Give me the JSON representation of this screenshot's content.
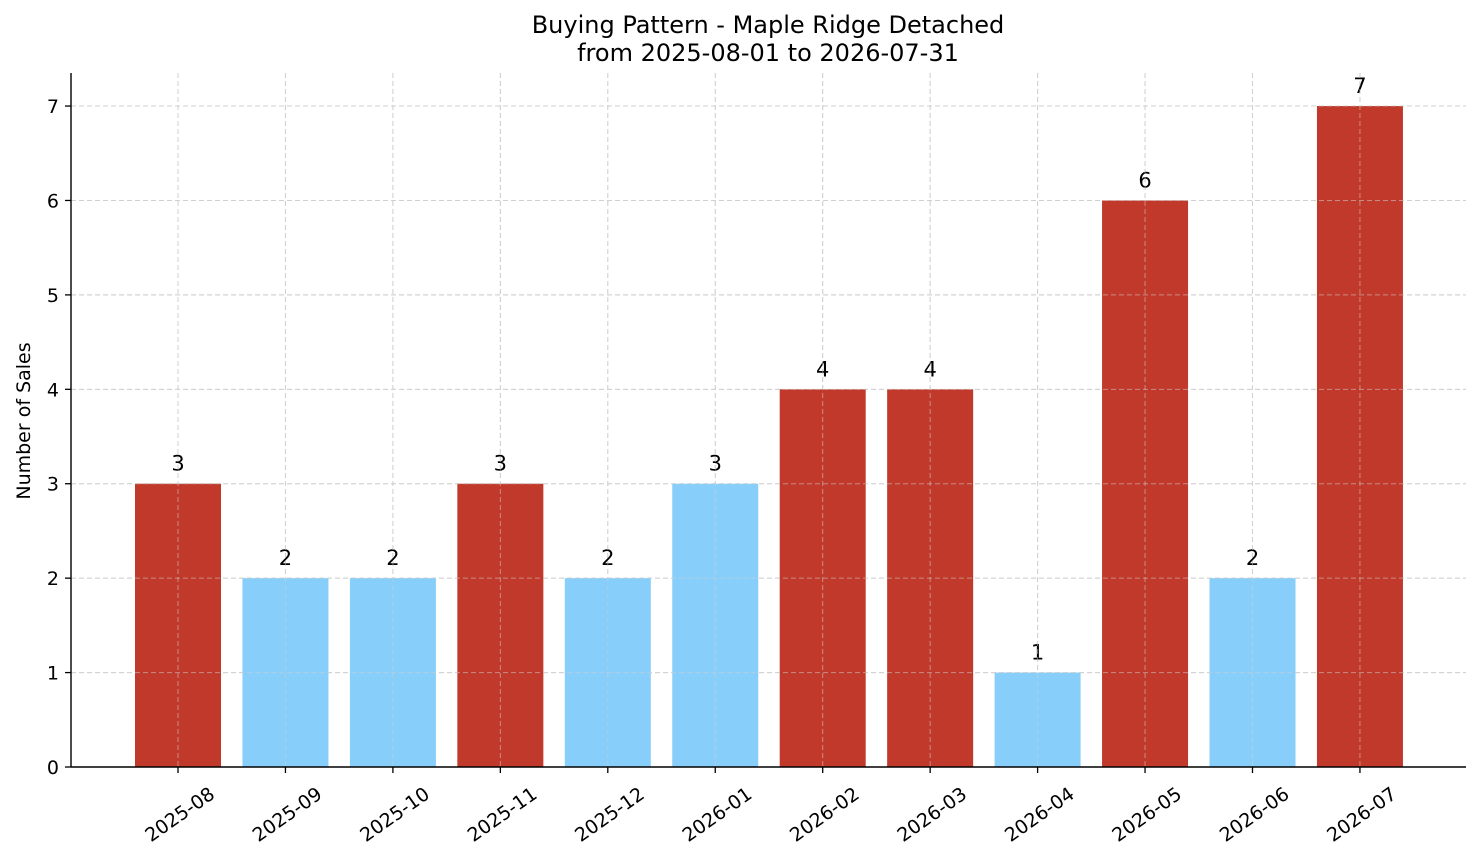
{
  "chart_data": {
    "type": "bar",
    "title": "Buying Pattern - Maple Ridge Detached",
    "subtitle": "from 2025-08-01 to 2026-07-31",
    "xlabel": "",
    "ylabel": "Number of Sales",
    "categories": [
      "2025-08",
      "2025-09",
      "2025-10",
      "2025-11",
      "2025-12",
      "2026-01",
      "2026-02",
      "2026-03",
      "2026-04",
      "2026-05",
      "2026-06",
      "2026-07"
    ],
    "values": [
      3,
      2,
      2,
      3,
      2,
      3,
      4,
      4,
      1,
      6,
      2,
      7
    ],
    "bar_colors": [
      "#c0392b",
      "#87cefa",
      "#87cefa",
      "#c0392b",
      "#87cefa",
      "#87cefa",
      "#c0392b",
      "#c0392b",
      "#87cefa",
      "#c0392b",
      "#87cefa",
      "#c0392b"
    ],
    "yticks": [
      0,
      1,
      2,
      3,
      4,
      5,
      6,
      7
    ],
    "ylim": [
      0,
      7.35
    ],
    "grid": true,
    "legend": "none"
  }
}
